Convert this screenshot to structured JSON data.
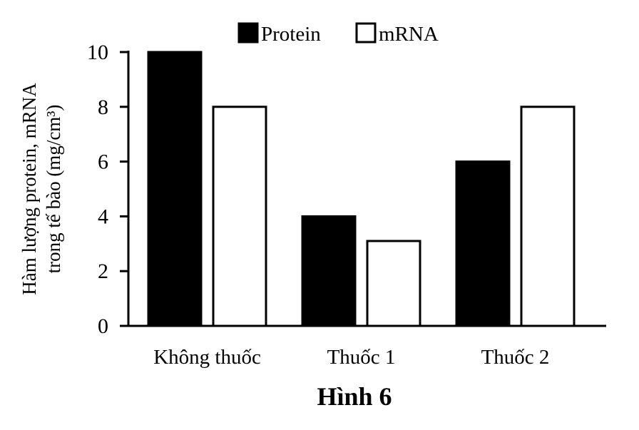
{
  "chart_data": {
    "type": "bar",
    "title": "Hình 6",
    "xlabel": "",
    "ylabel_lines": [
      "Hàm lượng protein, mRNA",
      "trong tế bào (mg/cm³)"
    ],
    "categories": [
      "Không thuốc",
      "Thuốc 1",
      "Thuốc 2"
    ],
    "series": [
      {
        "name": "Protein",
        "values": [
          10,
          4,
          6
        ],
        "fill": "#000000"
      },
      {
        "name": "mRNA",
        "values": [
          8,
          3.1,
          8
        ],
        "fill": "#ffffff"
      }
    ],
    "yticks": [
      0,
      2,
      4,
      6,
      8,
      10
    ],
    "ylim": [
      0,
      10
    ],
    "grid": false,
    "legend_position": "top-center"
  }
}
